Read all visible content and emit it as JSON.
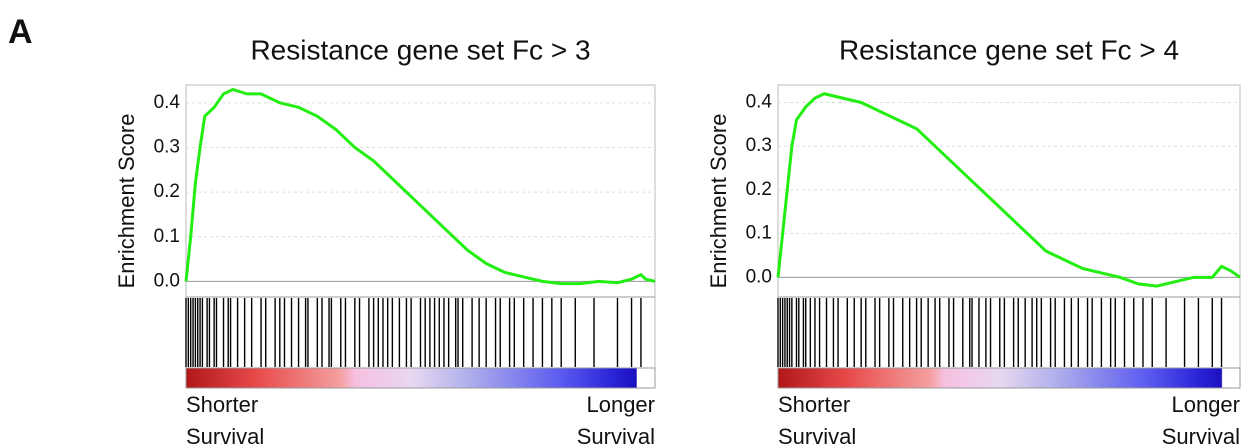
{
  "panel_label": "A",
  "chart_data": [
    {
      "type": "line",
      "title": "Resistance gene set Fc > 3",
      "y_label": "Enrichment Score",
      "left_label": [
        "Shorter",
        "Survival"
      ],
      "right_label": [
        "Longer",
        "Survival"
      ],
      "color": "#22ee11",
      "hit_color": "#000000",
      "grid": true,
      "xlim": [
        0,
        100
      ],
      "ylim": [
        -0.035,
        0.44
      ],
      "yticks": [
        {
          "value": 0,
          "label": "0.0"
        },
        0.1,
        0.2,
        0.3,
        0.4
      ],
      "x": [
        0,
        1,
        2,
        3,
        4,
        6,
        8,
        10,
        13,
        16,
        20,
        24,
        28,
        32,
        36,
        40,
        44,
        48,
        52,
        56,
        60,
        64,
        68,
        72,
        76,
        80,
        84,
        88,
        92,
        95,
        97,
        98,
        100
      ],
      "values": [
        0,
        0.1,
        0.22,
        0.3,
        0.37,
        0.39,
        0.42,
        0.43,
        0.42,
        0.42,
        0.4,
        0.39,
        0.37,
        0.34,
        0.3,
        0.27,
        0.23,
        0.19,
        0.15,
        0.11,
        0.07,
        0.04,
        0.02,
        0.01,
        0,
        -0.005,
        -0.005,
        0,
        -0.003,
        0.005,
        0.015,
        0.005,
        0
      ],
      "hits": [
        0,
        0.5,
        1,
        1.5,
        2,
        2.5,
        3,
        3.5,
        4.5,
        5,
        6,
        6.5,
        8,
        9,
        9.5,
        11,
        12.5,
        14,
        16,
        17,
        19,
        20,
        21,
        22.5,
        24,
        25.5,
        26,
        28,
        29,
        30.5,
        31,
        33,
        34,
        36,
        37,
        39,
        40,
        41,
        42,
        43,
        44,
        45.5,
        47,
        48,
        50,
        51,
        52,
        53,
        54,
        55,
        56,
        57.5,
        58,
        59,
        61,
        62.5,
        64,
        66,
        67,
        69,
        70,
        72,
        74,
        76,
        78,
        80,
        83,
        87,
        92,
        95,
        97
      ]
    },
    {
      "type": "line",
      "title": "Resistance gene set Fc > 4",
      "y_label": "Enrichment Score",
      "left_label": [
        "Shorter",
        "Survival"
      ],
      "right_label": [
        "Longer",
        "Survival"
      ],
      "color": "#22ee11",
      "hit_color": "#000000",
      "grid": true,
      "xlim": [
        0,
        100
      ],
      "ylim": [
        -0.045,
        0.44
      ],
      "yticks": [
        {
          "value": 0,
          "label": "0.0"
        },
        0.1,
        0.2,
        0.3,
        0.4
      ],
      "x": [
        0,
        1,
        2,
        3,
        4,
        6,
        8,
        10,
        14,
        18,
        22,
        26,
        30,
        34,
        38,
        42,
        46,
        50,
        54,
        58,
        62,
        66,
        70,
        74,
        78,
        82,
        86,
        90,
        94,
        96,
        98,
        100
      ],
      "values": [
        0,
        0.1,
        0.2,
        0.3,
        0.36,
        0.39,
        0.41,
        0.42,
        0.41,
        0.4,
        0.38,
        0.36,
        0.34,
        0.3,
        0.26,
        0.22,
        0.18,
        0.14,
        0.1,
        0.06,
        0.04,
        0.02,
        0.01,
        0,
        -0.015,
        -0.02,
        -0.01,
        0,
        0,
        0.025,
        0.015,
        0
      ],
      "hits": [
        0,
        0.5,
        1,
        1.5,
        2,
        2.5,
        3,
        4,
        4.5,
        5.5,
        6,
        7,
        8,
        9,
        10.5,
        12,
        13,
        15,
        16.5,
        18,
        19,
        21,
        22,
        24,
        25,
        27,
        28.5,
        30,
        31,
        32.5,
        34,
        35,
        37,
        38,
        40,
        41.5,
        42,
        43.5,
        45,
        46,
        48,
        49,
        51,
        52,
        53.5,
        55,
        56,
        57,
        59,
        60,
        62,
        63.5,
        65,
        67,
        68,
        70,
        72,
        73,
        75,
        77,
        79,
        81,
        84,
        88,
        91,
        94,
        96
      ]
    }
  ]
}
